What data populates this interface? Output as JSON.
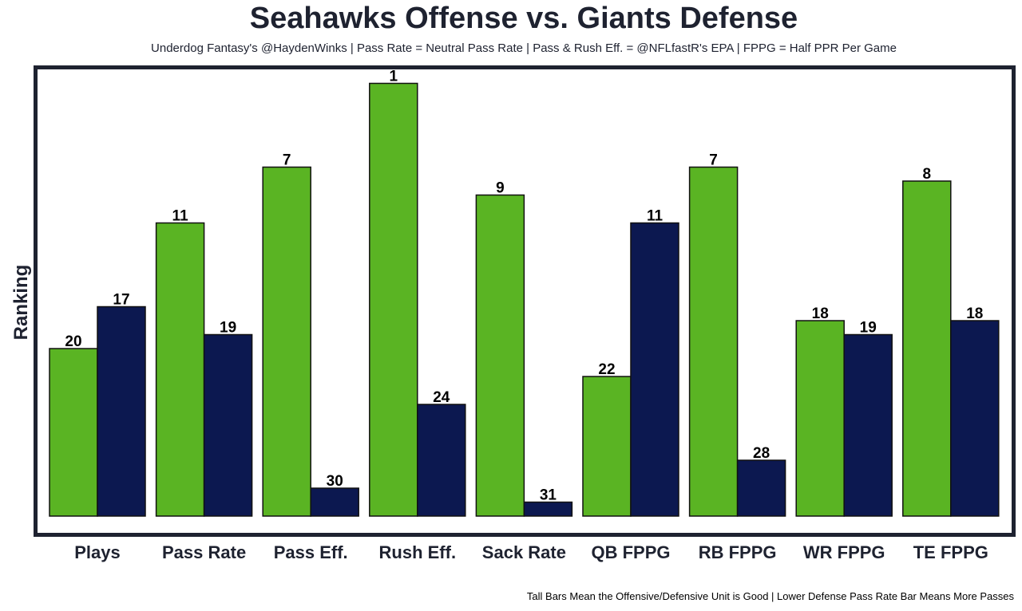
{
  "chart_data": {
    "type": "bar",
    "title": "Seahawks Offense vs. Giants Defense",
    "subtitle": "Underdog Fantasy's @HaydenWinks | Pass Rate = Neutral Pass Rate | Pass & Rush Eff. = @NFLfastR's EPA | FPPG = Half PPR Per Game",
    "xlabel": "",
    "ylabel": "Ranking",
    "caption": "Tall Bars Mean the Offensive/Defensive Unit is Good | Lower Defense Pass Rate Bar Means More Passes",
    "categories": [
      "Plays",
      "Pass Rate",
      "Pass Eff.",
      "Rush Eff.",
      "Sack Rate",
      "QB FPPG",
      "RB FPPG",
      "WR FPPG",
      "TE FPPG"
    ],
    "series": [
      {
        "name": "Seahawks Offense",
        "color": "#5ab423",
        "values": [
          20,
          11,
          7,
          1,
          9,
          22,
          7,
          18,
          8
        ]
      },
      {
        "name": "Giants Defense",
        "color": "#0c1850",
        "values": [
          17,
          19,
          30,
          24,
          31,
          11,
          28,
          19,
          18
        ]
      }
    ],
    "yaxis": "rank (1 = tallest)",
    "rank_max": 32
  }
}
